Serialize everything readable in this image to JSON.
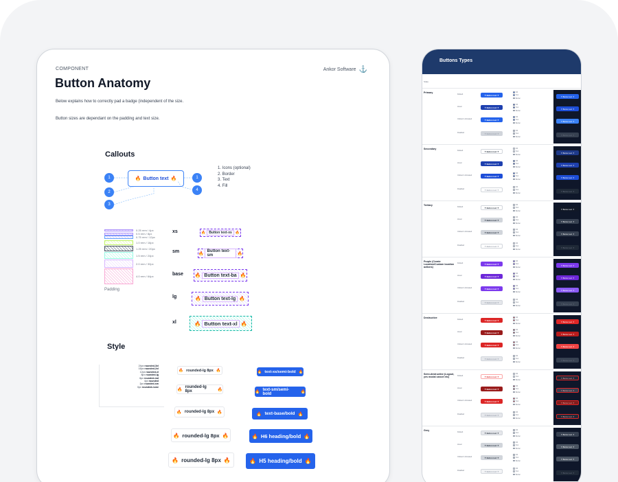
{
  "anatomy": {
    "label": "COMPONENT",
    "brand": "Ankor Software",
    "title": "Button Anatomy",
    "desc1": "Below explains how to correctly pad a badge (independent of the size.",
    "desc2": "Button sizes are dependant on the padding and text size.",
    "callouts_title": "Callouts",
    "callout_button": "Button text",
    "callout_markers": [
      "1",
      "2",
      "3",
      "1",
      "4"
    ],
    "callout_list": [
      "1. Icons (optional)",
      "2. Border",
      "3. Text",
      "4. Fill"
    ],
    "padding_rows": [
      "0.25 rem / 4px",
      "0.5 rem / 8px",
      "0.75 rem / 12px",
      "1.0 rem / 16px",
      "1.25 rem / 20px",
      "1.5 rem / 24px",
      "2.0 rem / 32px",
      "4.0 rem / 64px"
    ],
    "padding_label": "Padding",
    "sizes": [
      {
        "label": "xs",
        "text": "Button text-xs"
      },
      {
        "label": "sm",
        "text": "Button text-sm"
      },
      {
        "label": "base",
        "text": "Button text-ba"
      },
      {
        "label": "lg",
        "text": "Button text-lg"
      },
      {
        "label": "xl",
        "text": "Button text-xl"
      }
    ],
    "style_title": "Style",
    "radii": [
      {
        "size": "24px",
        "name": "rounded-3xl"
      },
      {
        "size": "16px",
        "name": "rounded-2xl"
      },
      {
        "size": "12px",
        "name": "rounded-xl"
      },
      {
        "size": "8px",
        "name": "rounded-lg"
      },
      {
        "size": "6px",
        "name": "rounded-md"
      },
      {
        "size": "4px",
        "name": "rounded"
      },
      {
        "size": "2px",
        "name": "rounded-sm"
      },
      {
        "size": "0px",
        "name": "rounded-none"
      }
    ],
    "outline_buttons": [
      "rounded-lg 8px",
      "rounded-lg 8px",
      "rounded-lg 8px",
      "rounded-lg 8px",
      "rounded-lg 8px"
    ],
    "blue_buttons": [
      "text-xs/semi-bold",
      "text-sm/semi-bold",
      "text-base/bold",
      "H6 heading/bold",
      "H5 heading/bold"
    ]
  },
  "types": {
    "title": "Buttons Types",
    "sub": "State",
    "row_labels": [
      "Default",
      "Hover",
      "Clicked / Activated",
      "Disabled"
    ],
    "mini_text": "Button text",
    "legend_items": [
      "Fill",
      "Text",
      "Border"
    ],
    "groups": [
      {
        "name": "Primary",
        "colors": [
          "#2563eb",
          "#1e40af",
          "#2563eb",
          "#d1d5db"
        ],
        "dark": [
          "#2563eb",
          "#1d4ed8",
          "#3b82f6",
          "#374151"
        ]
      },
      {
        "name": "Secondary",
        "colors": [
          "#ffffff",
          "#1e40af",
          "#1d4ed8",
          "#ffffff"
        ],
        "dark": [
          "#1e3a8a",
          "#1e40af",
          "#1d4ed8",
          "#1f2937"
        ]
      },
      {
        "name": "Tertiary",
        "colors": [
          "#ffffff",
          "#d1d5db",
          "#d1d5db",
          "#ffffff"
        ],
        "dark": [
          "#111827",
          "#374151",
          "#374151",
          "#1f2937"
        ]
      },
      {
        "name": "Purple (Create Location/Custom location actions)",
        "colors": [
          "#7c3aed",
          "#6d28d9",
          "#7c3aed",
          "#e5e7eb"
        ],
        "dark": [
          "#7c3aed",
          "#6d28d9",
          "#8b5cf6",
          "#374151"
        ]
      },
      {
        "name": "Destructive",
        "colors": [
          "#dc2626",
          "#991b1b",
          "#dc2626",
          "#e5e7eb"
        ],
        "dark": [
          "#dc2626",
          "#b91c1c",
          "#ef4444",
          "#374151"
        ]
      },
      {
        "name": "Semi-destructive (Logout, yes modal cancel etc)",
        "colors": [
          "#ffffff",
          "#991b1b",
          "#dc2626",
          "#e5e7eb"
        ],
        "dark": [
          "#1f2937",
          "#374151",
          "#7f1d1d",
          "#1f2937"
        ]
      },
      {
        "name": "Grey",
        "colors": [
          "#e5e7eb",
          "#d1d5db",
          "#d1d5db",
          "#f3f4f6"
        ],
        "dark": [
          "#374151",
          "#4b5563",
          "#4b5563",
          "#1f2937"
        ]
      }
    ]
  }
}
